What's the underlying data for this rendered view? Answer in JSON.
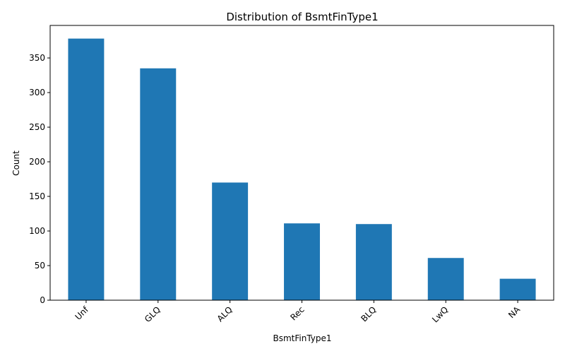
{
  "chart_data": {
    "type": "bar",
    "title": "Distribution of BsmtFinType1",
    "xlabel": "BsmtFinType1",
    "ylabel": "Count",
    "categories": [
      "Unf",
      "GLQ",
      "ALQ",
      "Rec",
      "BLQ",
      "LwQ",
      "NA"
    ],
    "values": [
      378,
      335,
      170,
      111,
      110,
      61,
      31
    ],
    "ylim": [
      0,
      397
    ],
    "yticks": [
      0,
      50,
      100,
      150,
      200,
      250,
      300,
      350
    ],
    "grid": false,
    "legend": "none",
    "bar_color": "#1f77b4"
  }
}
